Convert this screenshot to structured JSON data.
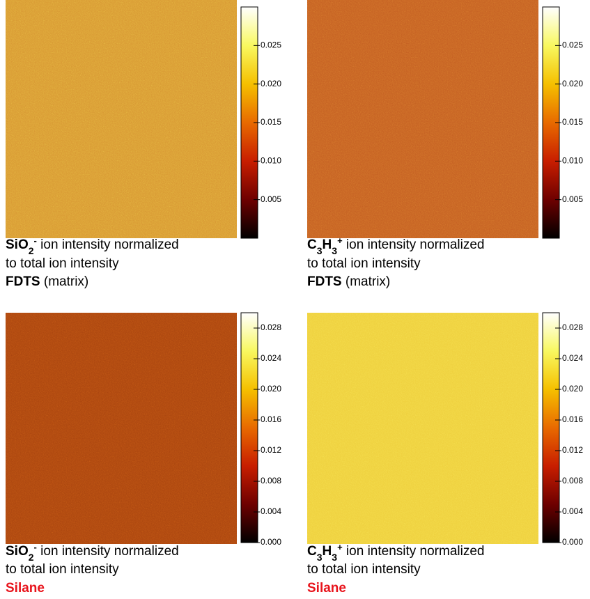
{
  "chart_data": [
    {
      "type": "image",
      "color": "#d89632",
      "colormap": [
        "#000000",
        "#6e0000",
        "#c81e00",
        "#e86a00",
        "#f5c000",
        "#f8f860",
        "#ffffff"
      ],
      "ylim": [
        0,
        0.03
      ],
      "yticks": [
        0.005,
        {
          "value": 0.01,
          "label": "0.010"
        },
        0.015,
        {
          "value": 0.02,
          "label": "0.020"
        },
        0.025
      ],
      "caption": [
        [
          {
            "text": "SiO",
            "style": "bold"
          },
          {
            "text": "2",
            "style": "bold-sub"
          },
          {
            "text": "-",
            "style": "bold-sup"
          },
          {
            "text": " ion intensity normalized"
          }
        ],
        [
          {
            "text": "to total ion intensity"
          }
        ],
        [
          {
            "text": "FDTS",
            "style": "bold"
          },
          {
            "text": " (matrix)"
          }
        ]
      ]
    },
    {
      "type": "image",
      "color": "#c45e22",
      "colormap": [
        "#000000",
        "#6e0000",
        "#c81e00",
        "#e86a00",
        "#f5c000",
        "#f8f860",
        "#ffffff"
      ],
      "ylim": [
        0,
        0.03
      ],
      "yticks": [
        0.005,
        {
          "value": 0.01,
          "label": "0.010"
        },
        0.015,
        {
          "value": 0.02,
          "label": "0.020"
        },
        0.025
      ],
      "caption": [
        [
          {
            "text": "C",
            "style": "bold"
          },
          {
            "text": "3",
            "style": "bold-sub"
          },
          {
            "text": "H",
            "style": "bold"
          },
          {
            "text": "3",
            "style": "bold-sub"
          },
          {
            "text": "+",
            "style": "bold-sup"
          },
          {
            "text": " ion intensity normalized"
          }
        ],
        [
          {
            "text": "to total ion intensity"
          }
        ],
        [
          {
            "text": "FDTS",
            "style": "bold"
          },
          {
            "text": " (matrix)"
          }
        ]
      ]
    },
    {
      "type": "image",
      "color": "#a9440f",
      "colormap": [
        "#000000",
        "#6e0000",
        "#c81e00",
        "#e86a00",
        "#f5c000",
        "#f8f860",
        "#ffffff"
      ],
      "ylim": [
        0,
        0.03
      ],
      "yticks": [
        {
          "value": 0,
          "label": "0.000"
        },
        0.004,
        0.008,
        0.012,
        0.016,
        {
          "value": 0.02,
          "label": "0.020"
        },
        0.024,
        0.028
      ],
      "caption": [
        [
          {
            "text": "SiO",
            "style": "bold"
          },
          {
            "text": "2",
            "style": "bold-sub"
          },
          {
            "text": "-",
            "style": "bold-sup"
          },
          {
            "text": " ion intensity normalized"
          }
        ],
        [
          {
            "text": "to total ion intensity"
          }
        ],
        [
          {
            "text": "Silane",
            "style": "bold-red"
          }
        ]
      ]
    },
    {
      "type": "image",
      "color": "#efcf3c",
      "colormap": [
        "#000000",
        "#6e0000",
        "#c81e00",
        "#e86a00",
        "#f5c000",
        "#f8f860",
        "#ffffff"
      ],
      "ylim": [
        0,
        0.03
      ],
      "yticks": [
        {
          "value": 0,
          "label": "0.000"
        },
        0.004,
        0.008,
        0.012,
        0.016,
        {
          "value": 0.02,
          "label": "0.020"
        },
        0.024,
        0.028
      ],
      "caption": [
        [
          {
            "text": "C",
            "style": "bold"
          },
          {
            "text": "3",
            "style": "bold-sub"
          },
          {
            "text": "H",
            "style": "bold"
          },
          {
            "text": "3",
            "style": "bold-sub"
          },
          {
            "text": "+",
            "style": "bold-sup"
          },
          {
            "text": " ion intensity normalized"
          }
        ],
        [
          {
            "text": "to total ion intensity"
          }
        ],
        [
          {
            "text": "Silane",
            "style": "bold-red"
          }
        ]
      ]
    }
  ]
}
